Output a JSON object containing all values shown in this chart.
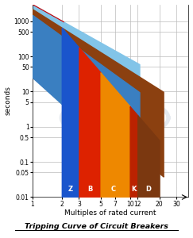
{
  "title": "Tripping Curve of Circuit Breakers",
  "xlabel": "Multiples of rated current",
  "ylabel": "seconds",
  "xlim": [
    1,
    40
  ],
  "ylim": [
    0.01,
    3000
  ],
  "xticks": [
    1,
    2,
    3,
    5,
    7,
    10,
    12,
    20,
    30
  ],
  "yticks": [
    0.01,
    0.05,
    0.1,
    0.5,
    1,
    5,
    10,
    50,
    100,
    500,
    1000
  ],
  "color_light_blue": "#82c4e8",
  "color_dark_blue": "#3a7fc1",
  "color_brown": "#8B4010",
  "color_Z": "#1a55cc",
  "color_B": "#dd2200",
  "color_C": "#ee8800",
  "color_K": "#bb2200",
  "color_D": "#7B3810",
  "bg_color": "#ffffff",
  "grid_color": "#bbbbbb",
  "watermark_color": "#ccd5e0",
  "zone_labels": [
    {
      "label": "Z",
      "x": 2.45,
      "color": "#ffffff"
    },
    {
      "label": "B",
      "x": 3.9,
      "color": "#ffffff"
    },
    {
      "label": "C",
      "x": 6.7,
      "color": "#ffffff"
    },
    {
      "label": "K",
      "x": 10.9,
      "color": "#ffffff"
    },
    {
      "label": "D",
      "x": 15.5,
      "color": "#ffffff"
    }
  ]
}
